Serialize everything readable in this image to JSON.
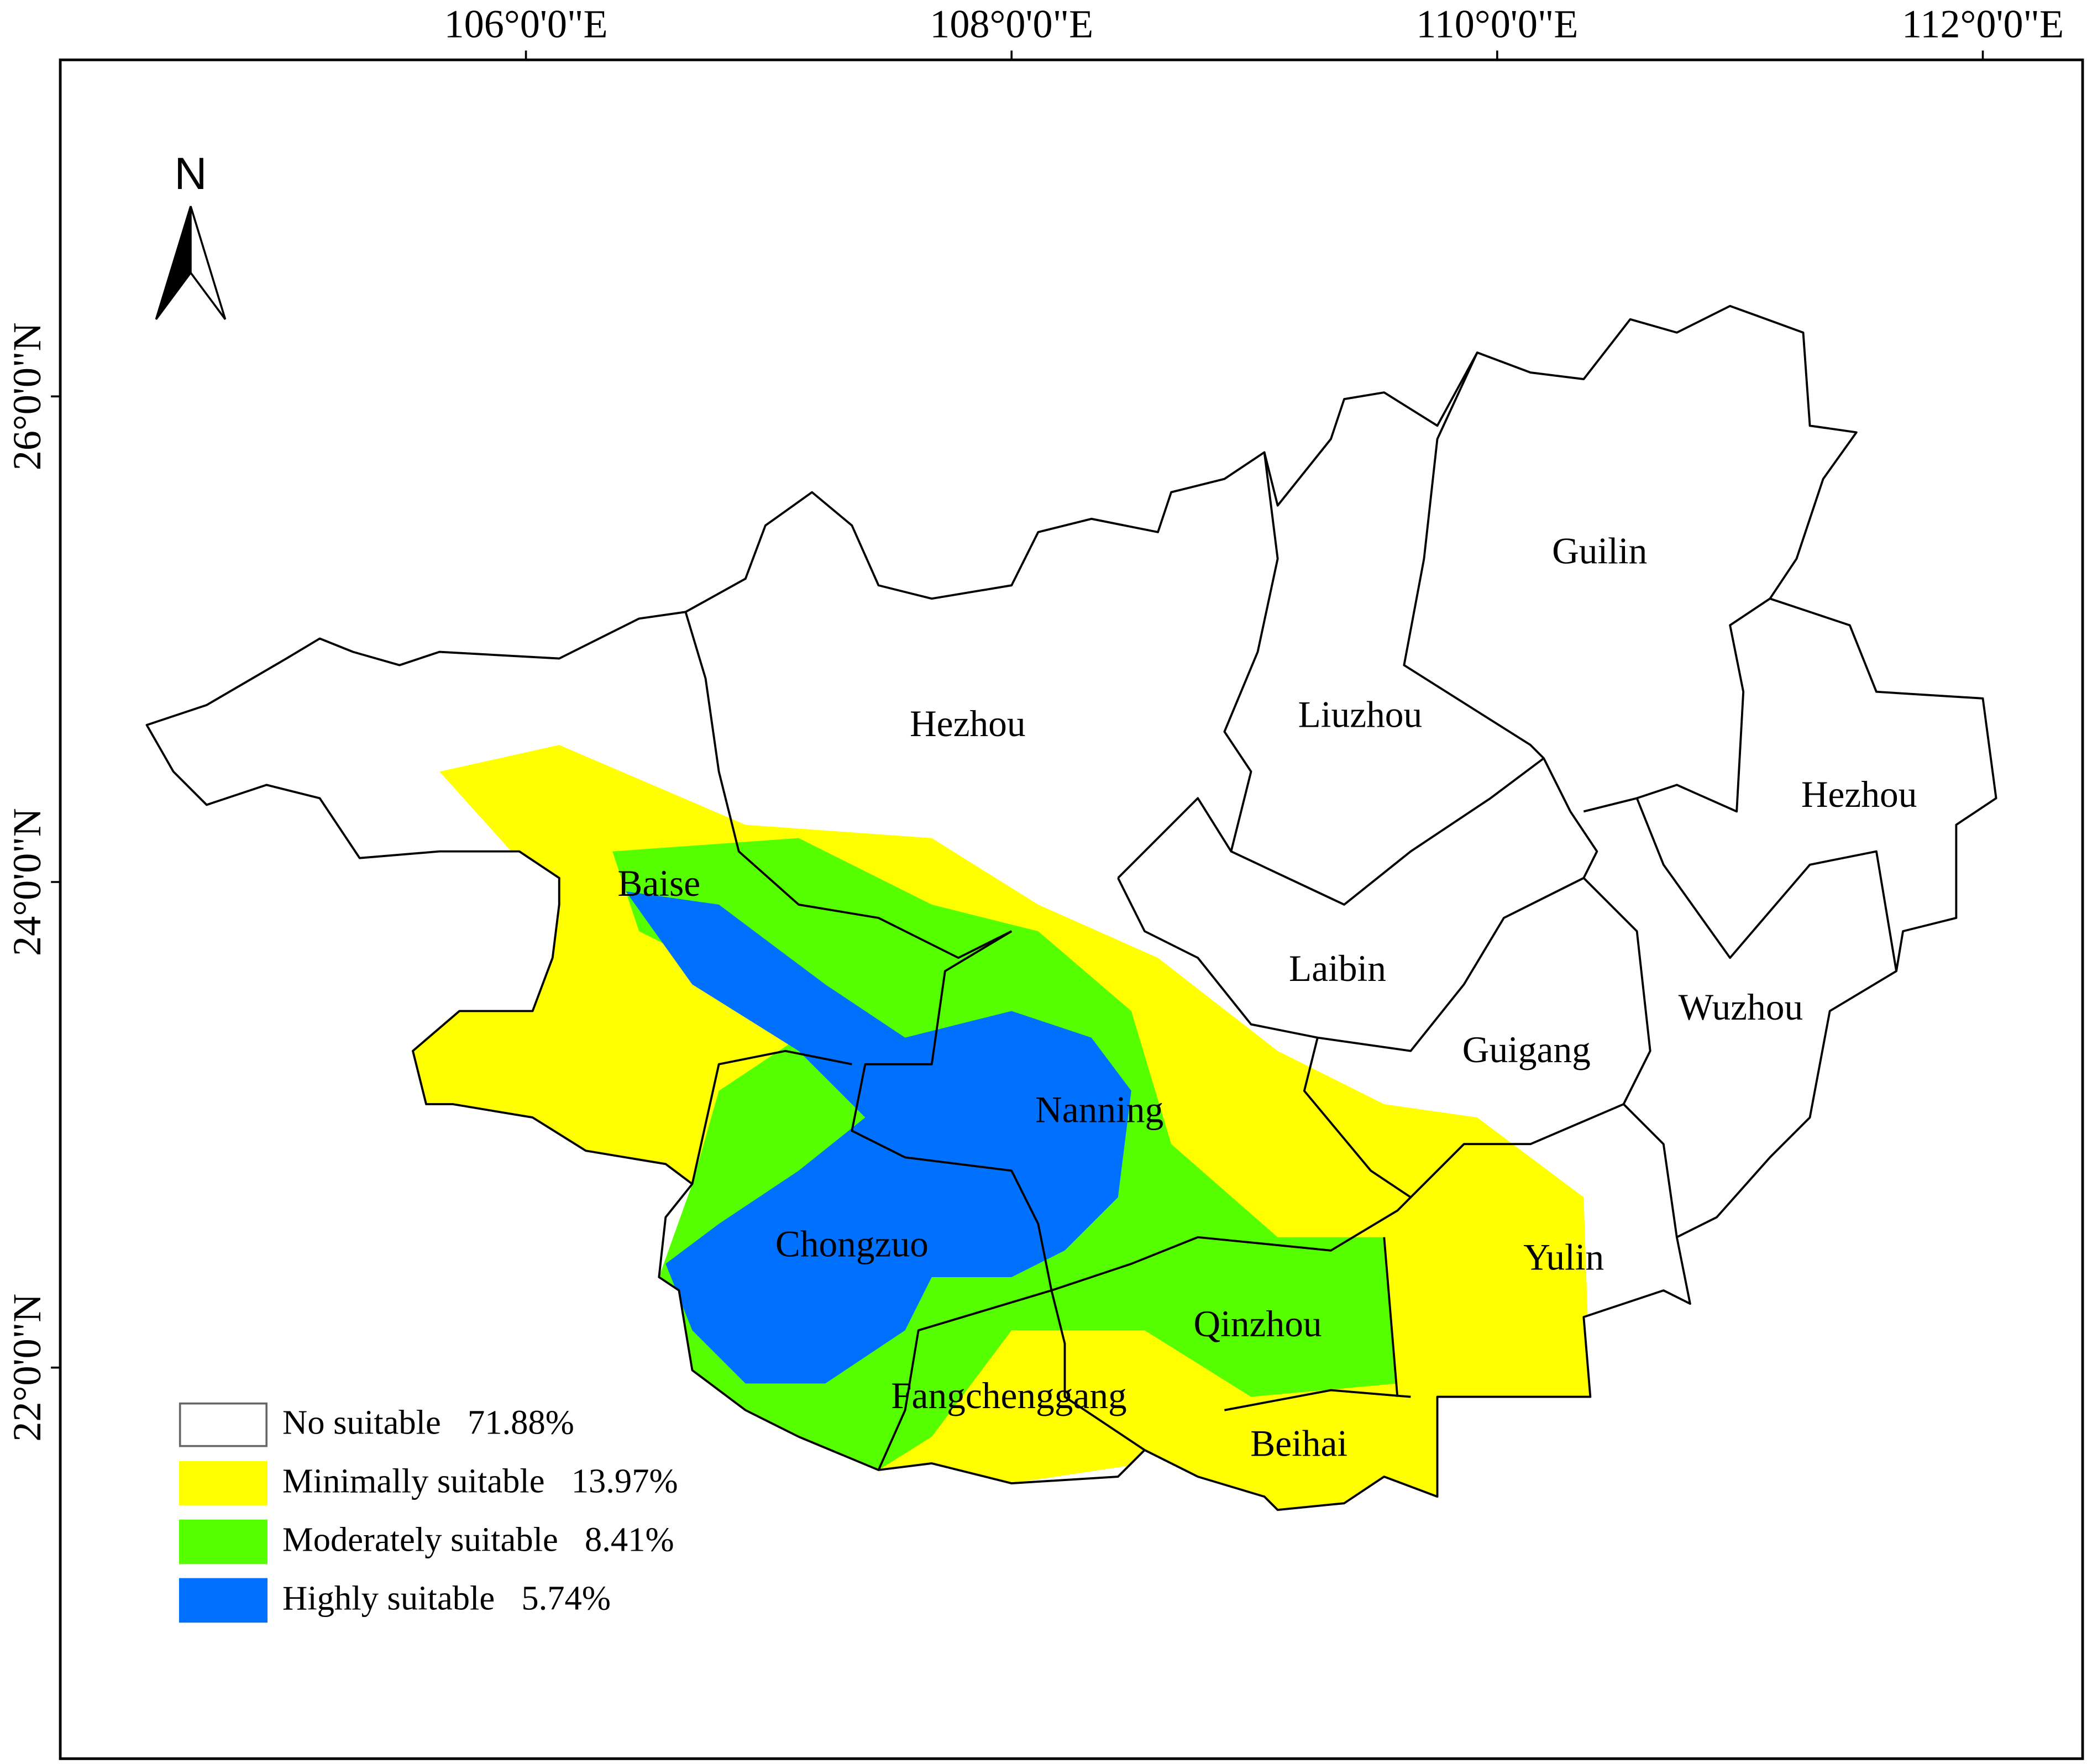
{
  "map": {
    "longitude_labels": [
      "106°0'0\"E",
      "108°0'0\"E",
      "110°0'0\"E",
      "112°0'0\"E"
    ],
    "latitude_labels": [
      "26°0'0\"N",
      "24°0'0\"N",
      "22°0'0\"N"
    ],
    "north_label": "N",
    "cities": [
      "Hezhou",
      "Liuzhou",
      "Guilin",
      "Hezhou",
      "Baise",
      "Laibin",
      "Wuzhou",
      "Guigang",
      "Nanning",
      "Yulin",
      "Chongzuo",
      "Qinzhou",
      "Fangchenggang",
      "Beihai"
    ],
    "legend": [
      {
        "label": "No suitable",
        "percent": "71.88%",
        "color": "#ffffff"
      },
      {
        "label": "Minimally suitable",
        "percent": "13.97%",
        "color": "#ffff00"
      },
      {
        "label": "Moderately suitable",
        "percent": "8.41%",
        "color": "#55ff00"
      },
      {
        "label": "Highly suitable",
        "percent": "5.74%",
        "color": "#0070ff"
      }
    ]
  }
}
